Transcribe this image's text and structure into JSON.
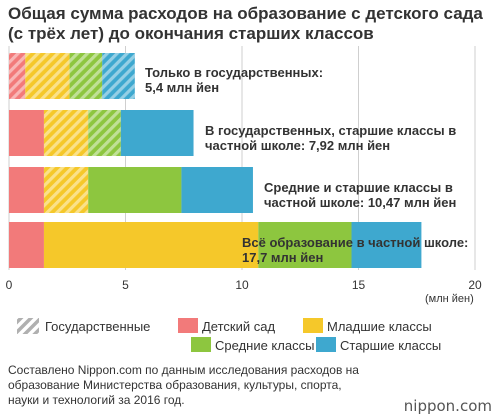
{
  "title": "Общая сумма расходов на образование с детского сада (с трёх лет) до окончания старших классов",
  "colors": {
    "kindergarten": "#f27a7a",
    "elementary": "#f5c82a",
    "middle": "#8dc63f",
    "high": "#3ea8cf",
    "public_hatch": "#b5b5b5"
  },
  "chart_data": {
    "type": "bar",
    "orientation": "horizontal",
    "stacked": true,
    "title": "Общая сумма расходов на образование с детского сада (с трёх лет) до окончания старших классов",
    "xlabel": "(млн йен)",
    "xlim": [
      0,
      20
    ],
    "xticks": [
      0,
      5,
      10,
      15,
      20
    ],
    "grid": true,
    "categories": [
      "Только в государственных: 5,4 млн йен",
      "В государственных, старшие классы в частной школе: 7,92 млн йен",
      "Средние и старшие классы в частной школе: 10,47 млн йен",
      "Всё образование в частной школе: 17,7 млн йен"
    ],
    "totals": [
      5.4,
      7.92,
      10.47,
      17.7
    ],
    "series": [
      {
        "name": "Детский сад",
        "color": "#f27a7a",
        "values": [
          0.7,
          1.5,
          1.5,
          1.5
        ],
        "public": [
          true,
          false,
          false,
          false
        ]
      },
      {
        "name": "Младшие классы",
        "color": "#f5c82a",
        "values": [
          1.9,
          1.9,
          1.9,
          9.2
        ],
        "public": [
          true,
          true,
          true,
          false
        ]
      },
      {
        "name": "Средние классы",
        "color": "#8dc63f",
        "values": [
          1.4,
          1.4,
          4.0,
          4.0
        ],
        "public": [
          true,
          true,
          false,
          false
        ]
      },
      {
        "name": "Старшие классы",
        "color": "#3ea8cf",
        "values": [
          1.4,
          3.12,
          3.07,
          3.0
        ],
        "public": [
          true,
          false,
          false,
          false
        ]
      }
    ],
    "legend": {
      "position": "bottom",
      "public_label": "Государственные",
      "items": [
        "Детский сад",
        "Младшие классы",
        "Средние классы",
        "Старшие классы"
      ]
    }
  },
  "annotations": [
    "Только в государственных:\n5,4 млн йен",
    "В государственных, старшие классы в\nчастной школе: 7,92 млн йен",
    "Средние и старшие классы в\nчастной школе: 10,47 млн йен",
    "Всё образование в частной школе:\n17,7 млн йен"
  ],
  "source": "Составлено Nippon.com по данным исследования расходов на образование Министерства образования, культуры, спорта, науки и технологий за 2016 год.",
  "brand": "nippon.com"
}
